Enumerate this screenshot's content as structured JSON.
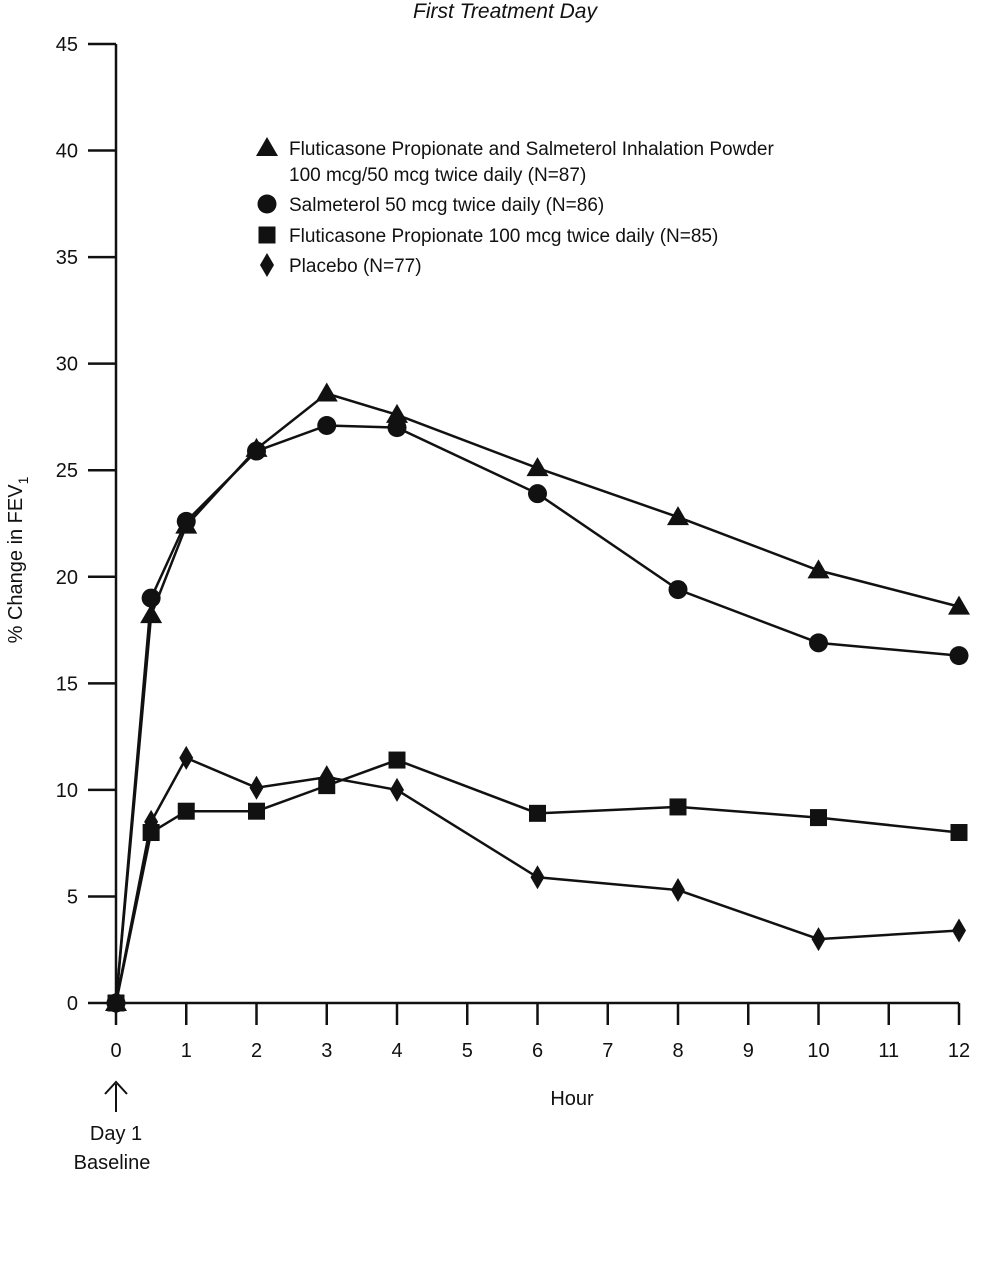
{
  "chart_data": {
    "type": "line",
    "title": "First Treatment Day",
    "xlabel": "Hour",
    "ylabel": "% Change in FEV",
    "ylabel_subscript": "1",
    "x_annotation": [
      "Day 1",
      "Baseline"
    ],
    "xlim": [
      0,
      12
    ],
    "ylim": [
      0,
      45
    ],
    "xticks": [
      0,
      1,
      2,
      3,
      4,
      5,
      6,
      7,
      8,
      9,
      10,
      11,
      12
    ],
    "yticks": [
      0,
      5,
      10,
      15,
      20,
      25,
      30,
      35,
      40,
      45
    ],
    "grid": false,
    "legend_position": "top-center",
    "x": [
      0,
      0.5,
      1,
      2,
      3,
      4,
      6,
      8,
      10,
      12
    ],
    "series": [
      {
        "name": "Fluticasone Propionate and Salmeterol Inhalation Powder",
        "name_line2": "100 mcg/50 mcg twice daily (N=87)",
        "marker": "triangle",
        "values": [
          0,
          18.2,
          22.4,
          26.0,
          28.6,
          27.6,
          25.1,
          22.8,
          20.3,
          18.6
        ]
      },
      {
        "name": "Salmeterol 50 mcg twice daily (N=86)",
        "marker": "circle",
        "values": [
          0,
          19.0,
          22.6,
          25.9,
          27.1,
          27.0,
          23.9,
          19.4,
          16.9,
          16.3
        ]
      },
      {
        "name": "Fluticasone Propionate 100 mcg twice daily (N=85)",
        "marker": "square",
        "values": [
          0,
          8.0,
          9.0,
          9.0,
          10.2,
          11.4,
          8.9,
          9.2,
          8.7,
          8.0
        ]
      },
      {
        "name": "Placebo (N=77)",
        "marker": "diamond",
        "values": [
          0,
          8.5,
          11.5,
          10.1,
          10.6,
          10.0,
          5.9,
          5.3,
          3.0,
          3.4
        ]
      }
    ]
  }
}
